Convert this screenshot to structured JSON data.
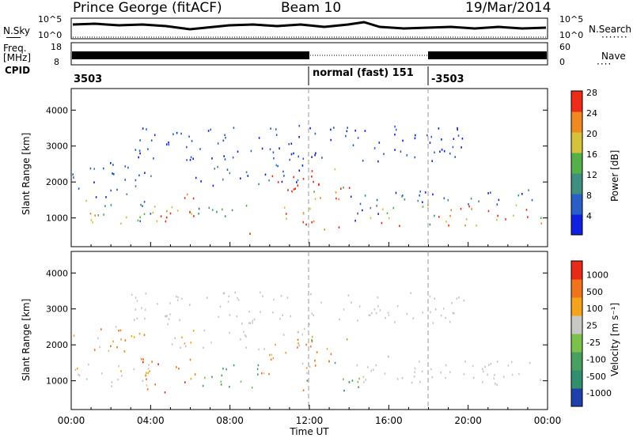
{
  "header": {
    "station": "Prince George (fitACF)",
    "beam": "Beam 10",
    "date": "19/Mar/2014"
  },
  "strip": {
    "nsky_label": "N.Sky",
    "nsearch_label": "N.Search",
    "nsky_ticks": [
      "10^5",
      "10^0"
    ],
    "freq_label_1": "Freq.",
    "freq_label_2": "[MHz]",
    "freq_ticks": [
      "18",
      "8"
    ],
    "nave_label": "Nave",
    "nave_ticks": [
      "60",
      "0"
    ],
    "cpid_label": "CPID",
    "cpid_segments": [
      "3503",
      "normal (fast) 151",
      "-3503"
    ]
  },
  "chart_data": [
    {
      "type": "heatmap",
      "title": "",
      "ylabel": "Slant Range [km]",
      "xlabel": "",
      "ylim": [
        200,
        4600
      ],
      "y_ticks": [
        1000,
        2000,
        3000,
        4000
      ],
      "colorbar": {
        "label": "Power [dB]",
        "ticks": [
          "4",
          "8",
          "12",
          "16",
          "20",
          "24",
          "28"
        ],
        "colors": [
          "#1020e0",
          "#2a5fc8",
          "#3f8f80",
          "#55b04a",
          "#d6c23a",
          "#f08a20",
          "#ee2a18"
        ]
      },
      "grid": false
    },
    {
      "type": "heatmap",
      "title": "",
      "ylabel": "Slant Range [km]",
      "xlabel": "Time UT",
      "ylim": [
        200,
        4600
      ],
      "y_ticks": [
        1000,
        2000,
        3000,
        4000
      ],
      "x_ticks": [
        "00:00",
        "04:00",
        "08:00",
        "12:00",
        "16:00",
        "20:00",
        "00:00"
      ],
      "colorbar": {
        "label": "Velocity [m s⁻¹]",
        "ticks": [
          "1000",
          "500",
          "100",
          "25",
          "-25",
          "-100",
          "-500",
          "-1000"
        ],
        "colors": [
          "#1f3faa",
          "#2f8f6e",
          "#48a060",
          "#7cc24a",
          "#c9c9c4",
          "#f4a41c",
          "#f0741c",
          "#e82a18"
        ]
      },
      "grid": false
    }
  ]
}
